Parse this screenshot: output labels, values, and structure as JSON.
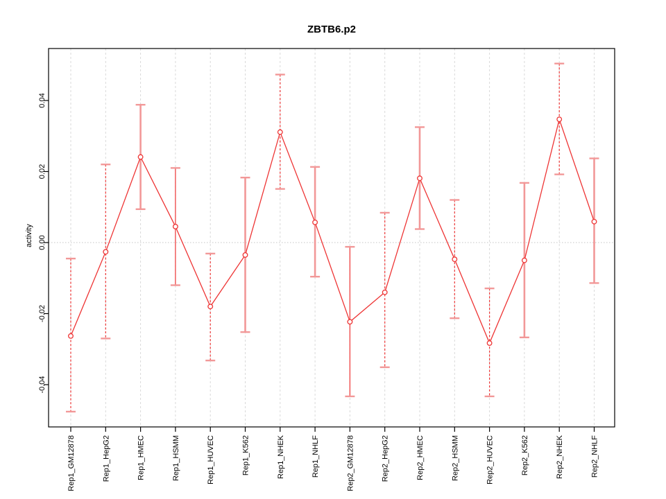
{
  "chart_data": {
    "type": "line",
    "title": "ZBTB6.p2",
    "ylabel": "activity",
    "xlabel": "",
    "ylim": [
      -0.0519,
      0.0546
    ],
    "grid": {
      "vertical_gridlines": "dashed, one per category",
      "zero_line": "dotted"
    },
    "legend_position": "none",
    "yticks": {
      "values": [
        -0.04,
        -0.02,
        0.0,
        0.02,
        0.04
      ],
      "labels": [
        "-0.04",
        "-0.02",
        "0.00",
        "0.02",
        "0.04"
      ]
    },
    "categories": [
      "Rep1_GM12878",
      "Rep1_HepG2",
      "Rep1_HMEC",
      "Rep1_HSMM",
      "Rep1_HUVEC",
      "Rep1_K562",
      "Rep1_NHEK",
      "Rep1_NHLF",
      "Rep2_GM12878",
      "Rep2_HepG2",
      "Rep2_HMEC",
      "Rep2_HSMM",
      "Rep2_HUVEC",
      "Rep2_K562",
      "Rep2_NHEK",
      "Rep2_NHLF"
    ],
    "series": [
      {
        "name": "activity",
        "values": [
          -0.0263,
          -0.0026,
          0.0241,
          0.0045,
          -0.018,
          -0.0035,
          0.0311,
          0.0057,
          -0.0223,
          -0.014,
          0.0181,
          -0.0047,
          -0.0283,
          -0.005,
          0.0347,
          0.0059
        ],
        "ci_high": [
          -0.0045,
          0.022,
          0.0388,
          0.021,
          -0.0031,
          0.0183,
          0.0473,
          0.0213,
          -0.0012,
          0.0084,
          0.0325,
          0.012,
          -0.0129,
          0.0168,
          0.0504,
          0.0237
        ],
        "ci_low": [
          -0.0476,
          -0.027,
          0.0094,
          -0.012,
          -0.0332,
          -0.0252,
          0.0151,
          -0.0096,
          -0.0433,
          -0.0351,
          0.0038,
          -0.0213,
          -0.0433,
          -0.0267,
          0.0192,
          -0.0114
        ]
      }
    ],
    "whisker_styles": [
      "dashed",
      "dashed",
      "thick",
      "thin",
      "dashed",
      "thick",
      "dashed",
      "thick",
      "thin",
      "dashed",
      "thick",
      "dashed",
      "dashed",
      "thick",
      "dashed",
      "thick"
    ],
    "colors": {
      "line": "#ee3434",
      "point_stroke": "#ee3434",
      "whisker_solid": "#f29898",
      "whisker_dashed": "#ee3434",
      "gridline": "#d9d9d9",
      "zero_line": "#c4c4c4",
      "axis": "#000000",
      "background": "#ffffff"
    }
  }
}
